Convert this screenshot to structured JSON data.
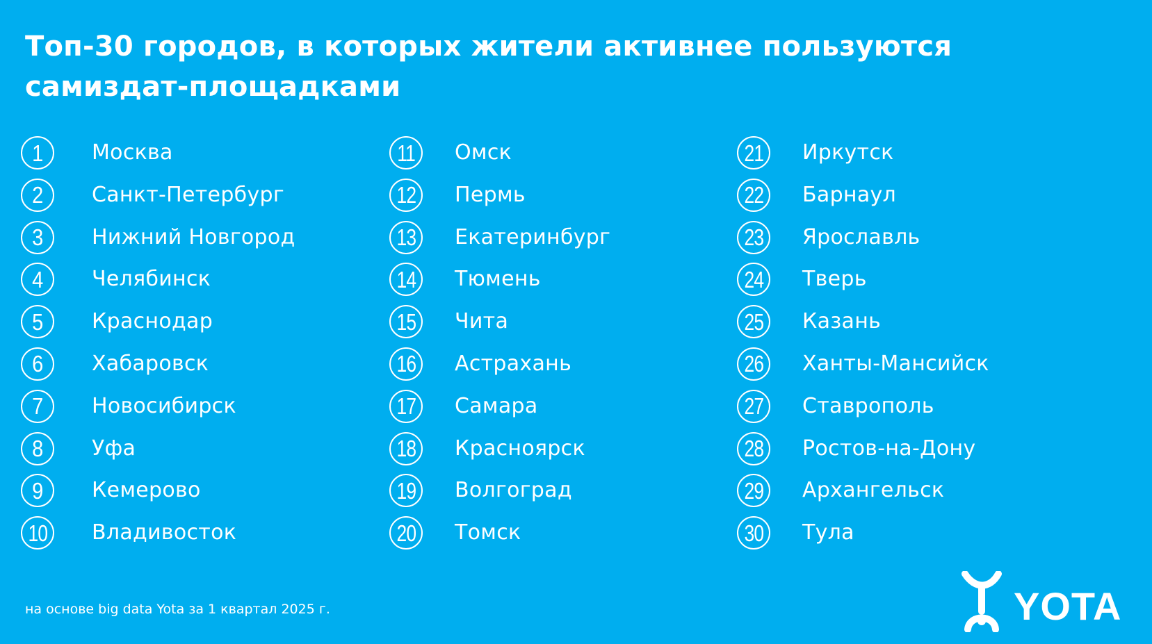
{
  "title": "Топ-30 городов, в которых жители активнее пользуются самиздат-площадками",
  "columns": [
    {
      "items": [
        {
          "rank": "1",
          "city": "Москва"
        },
        {
          "rank": "2",
          "city": "Санкт-Петербург"
        },
        {
          "rank": "3",
          "city": "Нижний Новгород"
        },
        {
          "rank": "4",
          "city": "Челябинск"
        },
        {
          "rank": "5",
          "city": "Краснодар"
        },
        {
          "rank": "6",
          "city": "Хабаровск"
        },
        {
          "rank": "7",
          "city": "Новосибирск"
        },
        {
          "rank": "8",
          "city": "Уфа"
        },
        {
          "rank": "9",
          "city": "Кемерово"
        },
        {
          "rank": "10",
          "city": "Владивосток"
        }
      ]
    },
    {
      "items": [
        {
          "rank": "11",
          "city": "Омск"
        },
        {
          "rank": "12",
          "city": "Пермь"
        },
        {
          "rank": "13",
          "city": "Екатеринбург"
        },
        {
          "rank": "14",
          "city": "Тюмень"
        },
        {
          "rank": "15",
          "city": "Чита"
        },
        {
          "rank": "16",
          "city": "Астрахань"
        },
        {
          "rank": "17",
          "city": "Самара"
        },
        {
          "rank": "18",
          "city": "Красноярск"
        },
        {
          "rank": "19",
          "city": "Волгоград"
        },
        {
          "rank": "20",
          "city": "Томск"
        }
      ]
    },
    {
      "items": [
        {
          "rank": "21",
          "city": "Иркутск"
        },
        {
          "rank": "22",
          "city": "Барнаул"
        },
        {
          "rank": "23",
          "city": "Ярославль"
        },
        {
          "rank": "24",
          "city": "Тверь"
        },
        {
          "rank": "25",
          "city": "Казань"
        },
        {
          "rank": "26",
          "city": "Ханты-Мансийск"
        },
        {
          "rank": "27",
          "city": "Ставрополь"
        },
        {
          "rank": "28",
          "city": "Ростов-на-Дону"
        },
        {
          "rank": "29",
          "city": "Архангельск"
        },
        {
          "rank": "30",
          "city": "Тула"
        }
      ]
    }
  ],
  "footnote": "на основе big data Yota за 1 квартал 2025 г.",
  "logo": {
    "text": "YOTA",
    "icon": "yota-symbol-icon"
  },
  "colors": {
    "background": "#00aeef",
    "foreground": "#ffffff"
  }
}
